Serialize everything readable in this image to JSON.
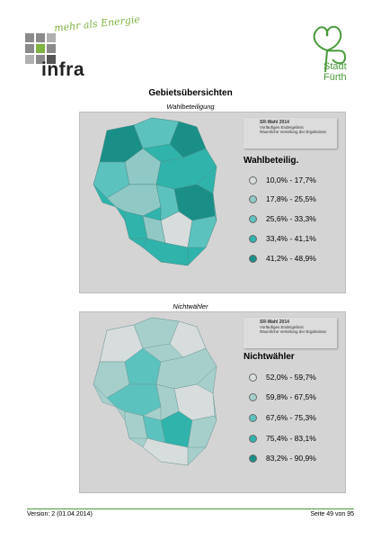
{
  "header": {
    "infra_slogan": "mehr als Energie",
    "infra_name": "infra",
    "city_logo": {
      "line1": "Stadt",
      "line2": "Fürth"
    },
    "colors": {
      "infra_green": "#7fb342",
      "city_green": "#4a9a3a"
    }
  },
  "title": "Gebietsübersichten",
  "maps": [
    {
      "caption": "Wahlbeteiligung",
      "panel_header": [
        "SR-Wahl 2014",
        "Vorläufiges Endergebnis",
        "Räumliche Verteilung der Ergebnisse"
      ],
      "legend_title": "Wahlbeteilig.",
      "legend": [
        {
          "label": "10,0% - 17,7%",
          "color": "#d7dcdc"
        },
        {
          "label": "17,8% - 25,5%",
          "color": "#8fc8c5"
        },
        {
          "label": "25,6% - 33,3%",
          "color": "#5cc2bd"
        },
        {
          "label": "33,4% - 41,1%",
          "color": "#2fb3aa"
        },
        {
          "label": "41,2% - 48,9%",
          "color": "#1a8f87"
        }
      ]
    },
    {
      "caption": "Nichtwähler",
      "panel_header": [
        "SR-Wahl 2014",
        "Vorläufiges Endergebnis",
        "Räumliche Verteilung der Ergebnisse"
      ],
      "legend_title": "Nichtwähler",
      "legend": [
        {
          "label": "52,0% - 59,7%",
          "color": "#d7dcdc"
        },
        {
          "label": "59,8% - 67,5%",
          "color": "#a6cfcc"
        },
        {
          "label": "67,6% - 75,3%",
          "color": "#5cc2bd"
        },
        {
          "label": "75,4% - 83,1%",
          "color": "#2fb3aa"
        },
        {
          "label": "83,2% - 90,9%",
          "color": "#1a8f87"
        }
      ]
    }
  ],
  "footer": {
    "version": "Version: 2 (01.04.2014)",
    "page": "Seite 49 von 95"
  }
}
